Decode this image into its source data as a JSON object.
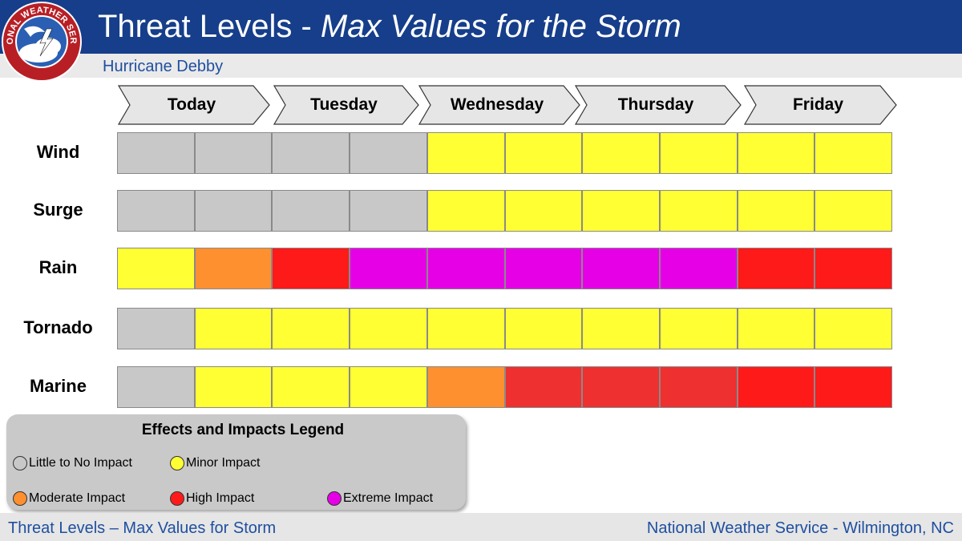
{
  "header": {
    "title_main": "Threat Levels - ",
    "title_italic": "Max Values for the Storm",
    "subtitle": "Hurricane Debby",
    "logo_text": "NATIONAL WEATHER SERVICE"
  },
  "days": [
    "Today",
    "Tuesday",
    "Wednesday",
    "Thursday",
    "Friday"
  ],
  "colors": {
    "little": "#c8c8c8",
    "minor": "#ffff33",
    "moderate": "#ff9030",
    "high": "#ff1a1a",
    "high_alt": "#ee3030",
    "extreme": "#e600e6"
  },
  "rows": [
    {
      "label": "Wind",
      "cells": [
        "little",
        "little",
        "little",
        "little",
        "minor",
        "minor",
        "minor",
        "minor",
        "minor",
        "minor"
      ]
    },
    {
      "label": "Surge",
      "cells": [
        "little",
        "little",
        "little",
        "little",
        "minor",
        "minor",
        "minor",
        "minor",
        "minor",
        "minor"
      ]
    },
    {
      "label": "Rain",
      "cells": [
        "minor",
        "moderate",
        "high",
        "extreme",
        "extreme",
        "extreme",
        "extreme",
        "extreme",
        "high",
        "high"
      ]
    },
    {
      "label": "Tornado",
      "cells": [
        "little",
        "minor",
        "minor",
        "minor",
        "minor",
        "minor",
        "minor",
        "minor",
        "minor",
        "minor"
      ]
    },
    {
      "label": "Marine",
      "cells": [
        "little",
        "minor",
        "minor",
        "minor",
        "moderate",
        "high_alt",
        "high_alt",
        "high_alt",
        "high",
        "high"
      ]
    }
  ],
  "legend": {
    "title": "Effects and Impacts Legend",
    "items": [
      {
        "label": "Little to No Impact",
        "color": "little"
      },
      {
        "label": "Minor Impact",
        "color": "minor"
      },
      {
        "label": "Moderate Impact",
        "color": "moderate"
      },
      {
        "label": "High Impact",
        "color": "high"
      },
      {
        "label": "Extreme Impact",
        "color": "extreme"
      }
    ]
  },
  "footer": {
    "left": "Threat Levels – Max Values for Storm",
    "right": "National Weather Service - Wilmington, NC"
  }
}
